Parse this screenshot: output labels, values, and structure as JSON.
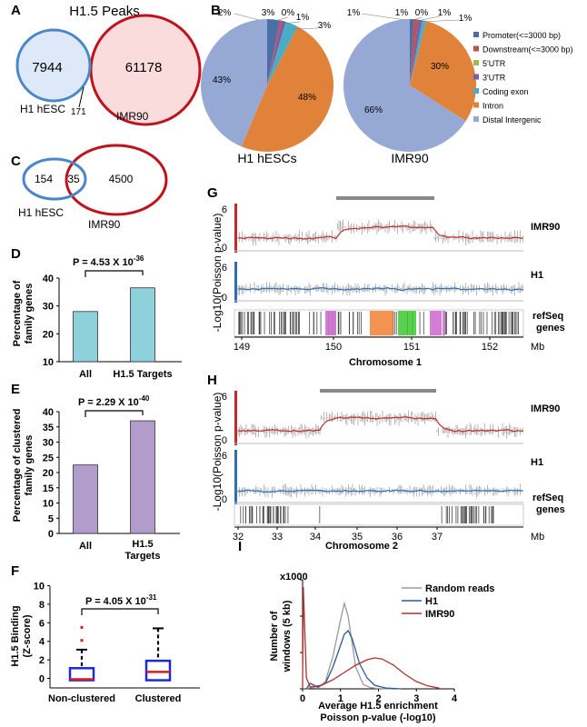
{
  "colors": {
    "promoter": "#4a6fa8",
    "downstream": "#c0504d",
    "utr5": "#9bbb59",
    "utr3": "#7a5ea8",
    "coding": "#4bacc6",
    "intron": "#e0823a",
    "intergenic": "#95a9d4",
    "venn_blue": "#4a86c8",
    "venn_red": "#c0121a",
    "bar_d": "#8fd0dd",
    "bar_e": "#b19ccb",
    "track_red": "#c42a2a",
    "track_blue": "#2a6fb8",
    "gray": "#888888"
  },
  "panels": {
    "a": {
      "letter": "A",
      "title": "H1.5 Peaks",
      "left_only": "7944",
      "right_only": "61178",
      "overlap": "171",
      "left_label": "H1 hESC",
      "right_label": "IMR90"
    },
    "b": {
      "letter": "B"
    },
    "c": {
      "letter": "C",
      "left_only": "154",
      "overlap": "35",
      "right_only": "4500",
      "left_label": "H1 hESC",
      "right_label": "IMR90"
    },
    "d": {
      "letter": "D",
      "pvalue": "P = 4.53 X 10",
      "pexp": "-36",
      "ylabel_1": "Percentage of",
      "ylabel_2": "family genes"
    },
    "e": {
      "letter": "E",
      "pvalue": "P = 2.29 X 10",
      "pexp": "-40",
      "ylabel_1": "Percentage of clustered",
      "ylabel_2": "family genes"
    },
    "f": {
      "letter": "F",
      "pvalue": "P = 4.05 X 10",
      "pexp": "-31",
      "ylabel_1": "H1.5 Binding",
      "ylabel_2": "(Z-score)"
    },
    "g": {
      "letter": "G",
      "ylabel": "-Log10(Poisson p-value)",
      "track1": "IMR90",
      "track2": "H1",
      "track3a": "refSeq",
      "track3b": "genes",
      "xlabel": "Chromosome 1",
      "unit": "Mb",
      "ticks": [
        "149",
        "150",
        "151",
        "152"
      ],
      "ymax": "6",
      "ymin": "0"
    },
    "h": {
      "letter": "H",
      "ylabel": "-Log10(Poisson p-value)",
      "track1": "IMR90",
      "track2": "H1",
      "track3a": "refSeq",
      "track3b": "genes",
      "xlabel": "Chromosome 2",
      "unit": "Mb",
      "ticks": [
        "32",
        "33",
        "34",
        "35",
        "36",
        "37"
      ],
      "ymax": "6",
      "ymin": "0"
    },
    "i": {
      "letter": "I",
      "scale": "x1000",
      "ylabel_1": "Number of",
      "ylabel_2": "windows (5 kb)",
      "xlabel_1": "Average H1.5 enrichment",
      "xlabel_2": "Poisson p-value (-log10)"
    }
  },
  "legend_b": [
    {
      "label": "Promoter(<=3000 bp)",
      "color": "#4a6fa8"
    },
    {
      "label": "Downstream(<=3000 bp)",
      "color": "#c0504d"
    },
    {
      "label": "5'UTR",
      "color": "#9bbb59"
    },
    {
      "label": "3'UTR",
      "color": "#7a5ea8"
    },
    {
      "label": "Coding exon",
      "color": "#4bacc6"
    },
    {
      "label": "Intron",
      "color": "#e0823a"
    },
    {
      "label": "Distal Intergenic",
      "color": "#95a9d4"
    }
  ],
  "chart_data": [
    {
      "type": "pie",
      "panel": "B-left",
      "title": "H1 hESCs",
      "categories": [
        "Promoter(<=3000 bp)",
        "Downstream(<=3000 bp)",
        "5'UTR",
        "3'UTR",
        "Coding exon",
        "Intron",
        "Distal Intergenic"
      ],
      "values": [
        3,
        0.5,
        0,
        1,
        3,
        48,
        43
      ],
      "labels": [
        "3%",
        "",
        "0%",
        "1%",
        "3%",
        "48%",
        "43%"
      ],
      "extra_label": "2%"
    },
    {
      "type": "pie",
      "panel": "B-right",
      "title": "IMR90",
      "categories": [
        "Promoter(<=3000 bp)",
        "Downstream(<=3000 bp)",
        "5'UTR",
        "3'UTR",
        "Coding exon",
        "Intron",
        "Distal Intergenic"
      ],
      "values": [
        1,
        1,
        0,
        1,
        1,
        30,
        66
      ],
      "labels": [
        "1%",
        "1%",
        "0%",
        "1%",
        "1%",
        "30%",
        "66%"
      ]
    },
    {
      "type": "bar",
      "panel": "D",
      "categories": [
        "All",
        "H1.5 Targets"
      ],
      "values": [
        28,
        36.5
      ],
      "ylim": [
        10,
        40
      ],
      "yticks": [
        "10",
        "20",
        "30",
        "40"
      ]
    },
    {
      "type": "bar",
      "panel": "E",
      "categories": [
        "All",
        "H1.5 Targets"
      ],
      "values": [
        22.5,
        37
      ],
      "ylim": [
        0,
        40
      ],
      "yticks": [
        "0",
        "5",
        "10",
        "15",
        "20",
        "25",
        "30",
        "35",
        "40"
      ]
    },
    {
      "type": "box",
      "panel": "F",
      "categories": [
        "Non-clustered",
        "Clustered"
      ],
      "boxes": [
        {
          "min": -0.2,
          "q1": -0.2,
          "median": -0.1,
          "q3": 1.1,
          "max": 3.1,
          "outliers": [
            4.1,
            5.5
          ]
        },
        {
          "min": -0.2,
          "q1": -0.2,
          "median": 0.7,
          "q3": 1.9,
          "max": 5.4,
          "outliers": []
        }
      ],
      "ylim": [
        -0.5,
        10
      ],
      "yticks": [
        "0",
        "2",
        "4",
        "6",
        "8",
        "10"
      ]
    },
    {
      "type": "line",
      "panel": "I",
      "xlim": [
        0,
        4
      ],
      "xticks": [
        "0",
        "1",
        "2",
        "3",
        "4"
      ],
      "ylim": [
        0,
        30
      ],
      "yticks": [
        "0",
        "10",
        "20",
        "30"
      ],
      "series": [
        {
          "name": "Random reads",
          "color": "#999999",
          "x": [
            0,
            0.1,
            0.2,
            0.4,
            0.6,
            0.8,
            1.0,
            1.1,
            1.2,
            1.3,
            1.4,
            1.6,
            1.8,
            2.0,
            2.4
          ],
          "y": [
            0,
            0,
            0.3,
            0.2,
            2,
            9,
            19,
            23.5,
            20,
            13,
            6,
            1.2,
            0.3,
            0.1,
            0
          ]
        },
        {
          "name": "H1",
          "color": "#2a5a9a",
          "x": [
            0,
            0.1,
            0.2,
            0.4,
            0.6,
            0.8,
            1.0,
            1.1,
            1.2,
            1.3,
            1.5,
            1.7,
            1.9,
            2.2,
            2.6
          ],
          "y": [
            0,
            0,
            1.5,
            0.5,
            1.5,
            6,
            12,
            15,
            16,
            14,
            7,
            3,
            1,
            0.2,
            0
          ]
        },
        {
          "name": "IMR90",
          "color": "#b03030",
          "x": [
            0,
            0.02,
            0.1,
            0.2,
            0.5,
            0.8,
            1.1,
            1.4,
            1.7,
            1.9,
            2.1,
            2.4,
            2.7,
            3.0,
            3.3,
            3.6
          ],
          "y": [
            0,
            28,
            3,
            0.5,
            1,
            2.5,
            4.5,
            6.5,
            8,
            8.5,
            8.2,
            6.5,
            4,
            2,
            0.8,
            0.2
          ]
        }
      ]
    }
  ]
}
